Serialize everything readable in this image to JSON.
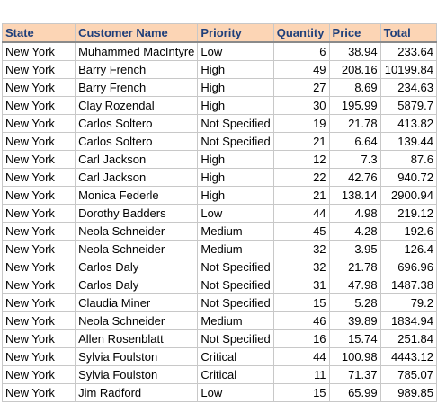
{
  "columns": [
    "State",
    "Customer Name",
    "Priority",
    "Quantity",
    "Price",
    "Total"
  ],
  "rows": [
    {
      "state": "New York",
      "customer": "Muhammed MacIntyre",
      "priority": "Low",
      "quantity": "6",
      "price": "38.94",
      "total": "233.64"
    },
    {
      "state": "New York",
      "customer": "Barry French",
      "priority": "High",
      "quantity": "49",
      "price": "208.16",
      "total": "10199.84"
    },
    {
      "state": "New York",
      "customer": "Barry French",
      "priority": "High",
      "quantity": "27",
      "price": "8.69",
      "total": "234.63"
    },
    {
      "state": "New York",
      "customer": "Clay Rozendal",
      "priority": "High",
      "quantity": "30",
      "price": "195.99",
      "total": "5879.7"
    },
    {
      "state": "New York",
      "customer": "Carlos Soltero",
      "priority": "Not Specified",
      "quantity": "19",
      "price": "21.78",
      "total": "413.82"
    },
    {
      "state": "New York",
      "customer": "Carlos Soltero",
      "priority": "Not Specified",
      "quantity": "21",
      "price": "6.64",
      "total": "139.44"
    },
    {
      "state": "New York",
      "customer": "Carl Jackson",
      "priority": "High",
      "quantity": "12",
      "price": "7.3",
      "total": "87.6"
    },
    {
      "state": "New York",
      "customer": "Carl Jackson",
      "priority": "High",
      "quantity": "22",
      "price": "42.76",
      "total": "940.72"
    },
    {
      "state": "New York",
      "customer": "Monica Federle",
      "priority": "High",
      "quantity": "21",
      "price": "138.14",
      "total": "2900.94"
    },
    {
      "state": "New York",
      "customer": "Dorothy Badders",
      "priority": "Low",
      "quantity": "44",
      "price": "4.98",
      "total": "219.12"
    },
    {
      "state": "New York",
      "customer": "Neola Schneider",
      "priority": "Medium",
      "quantity": "45",
      "price": "4.28",
      "total": "192.6"
    },
    {
      "state": "New York",
      "customer": "Neola Schneider",
      "priority": "Medium",
      "quantity": "32",
      "price": "3.95",
      "total": "126.4"
    },
    {
      "state": "New York",
      "customer": "Carlos Daly",
      "priority": "Not Specified",
      "quantity": "32",
      "price": "21.78",
      "total": "696.96"
    },
    {
      "state": "New York",
      "customer": "Carlos Daly",
      "priority": "Not Specified",
      "quantity": "31",
      "price": "47.98",
      "total": "1487.38"
    },
    {
      "state": "New York",
      "customer": "Claudia Miner",
      "priority": "Not Specified",
      "quantity": "15",
      "price": "5.28",
      "total": "79.2"
    },
    {
      "state": "New York",
      "customer": "Neola Schneider",
      "priority": "Medium",
      "quantity": "46",
      "price": "39.89",
      "total": "1834.94"
    },
    {
      "state": "New York",
      "customer": "Allen Rosenblatt",
      "priority": "Not Specified",
      "quantity": "16",
      "price": "15.74",
      "total": "251.84"
    },
    {
      "state": "New York",
      "customer": "Sylvia Foulston",
      "priority": "Critical",
      "quantity": "44",
      "price": "100.98",
      "total": "4443.12"
    },
    {
      "state": "New York",
      "customer": "Sylvia Foulston",
      "priority": "Critical",
      "quantity": "11",
      "price": "71.37",
      "total": "785.07"
    },
    {
      "state": "New York",
      "customer": "Jim Radford",
      "priority": "Low",
      "quantity": "15",
      "price": "65.99",
      "total": "989.85"
    }
  ],
  "colors": {
    "header_bg": "#fcd5b5",
    "header_text": "#1f3f7a",
    "gridline": "#c8c8c8"
  }
}
